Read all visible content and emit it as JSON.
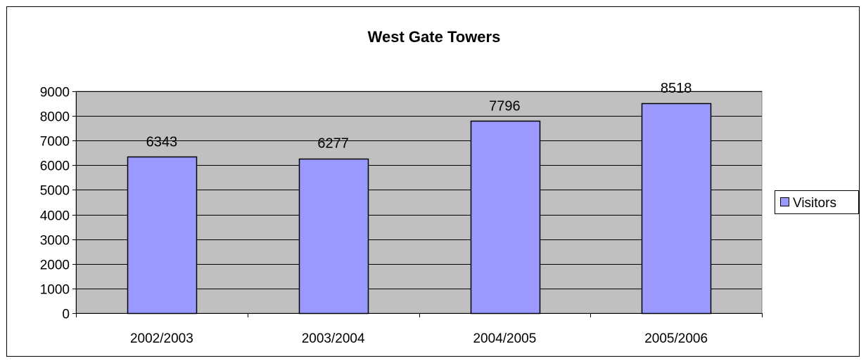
{
  "chart_data": {
    "type": "bar",
    "title": "West Gate Towers",
    "xlabel": "",
    "ylabel": "",
    "categories": [
      "2002/2003",
      "2003/2004",
      "2004/2005",
      "2005/2006"
    ],
    "series": [
      {
        "name": "Visitors",
        "values": [
          6343,
          6277,
          7796,
          8518
        ]
      }
    ],
    "data_labels": [
      "6343",
      "6277",
      "7796",
      "8518"
    ],
    "ylim": [
      0,
      9000
    ],
    "yticks": [
      0,
      1000,
      2000,
      3000,
      4000,
      5000,
      6000,
      7000,
      8000,
      9000
    ],
    "grid": true,
    "legend": "right",
    "colors": {
      "bar": "#9999ff",
      "plot_bg": "#c0c0c0",
      "gridline": "#000000"
    }
  }
}
